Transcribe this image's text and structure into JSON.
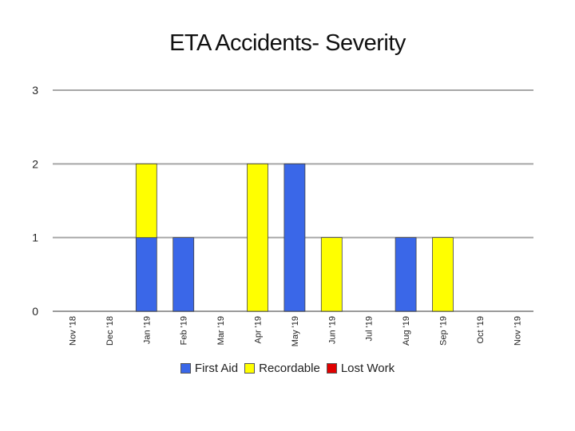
{
  "chart_data": {
    "type": "bar",
    "stacked": true,
    "title": "ETA Accidents- Severity",
    "categories": [
      "Nov '18",
      "Dec '18",
      "Jan '19",
      "Feb '19",
      "Mar '19",
      "Apr '19",
      "May '19",
      "Jun '19",
      "Jul '19",
      "Aug '19",
      "Sep '19",
      "Oct '19",
      "Nov '19"
    ],
    "series": [
      {
        "name": "First Aid",
        "color": "#3a67e8",
        "values": [
          0,
          0,
          1,
          1,
          0,
          0,
          2,
          0,
          0,
          1,
          0,
          0,
          0
        ]
      },
      {
        "name": "Recordable",
        "color": "#ffff00",
        "values": [
          0,
          0,
          1,
          0,
          0,
          2,
          0,
          1,
          0,
          0,
          1,
          0,
          0
        ]
      },
      {
        "name": "Lost Work",
        "color": "#e00000",
        "values": [
          0,
          0,
          0,
          0,
          0,
          0,
          0,
          0,
          0,
          0,
          0,
          0,
          0
        ]
      }
    ],
    "yticks": [
      "0",
      "1",
      "2",
      "3"
    ],
    "ylim": [
      0,
      3
    ],
    "grid": true,
    "legend_position": "bottom",
    "xlabel": "",
    "ylabel": ""
  }
}
